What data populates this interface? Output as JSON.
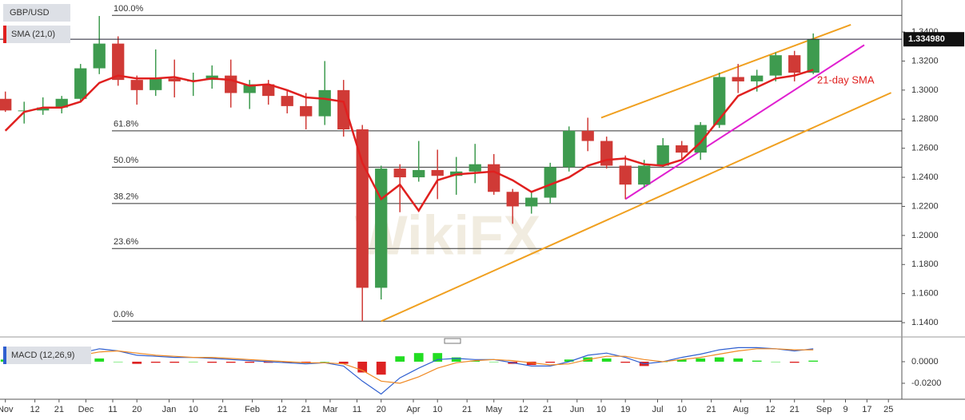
{
  "header": {
    "symbol": "GBP/USD",
    "indicator": "SMA (21,0)",
    "watermark": "WikiFX"
  },
  "chart_data": [
    {
      "type": "candlestick",
      "annotation": "21-day SMA",
      "colors": {
        "up": "#3e9b4f",
        "down": "#d03a36"
      },
      "xlim": [
        -2,
        334
      ],
      "ylim": [
        1.134,
        1.362
      ],
      "yticks": [
        {
          "value": 1.14,
          "label": "1.1400"
        },
        {
          "value": 1.16,
          "label": "1.1600"
        },
        {
          "value": 1.18,
          "label": "1.1800"
        },
        {
          "value": 1.2,
          "label": "1.2000"
        },
        {
          "value": 1.22,
          "label": "1.2200"
        },
        {
          "value": 1.24,
          "label": "1.2400"
        },
        {
          "value": 1.26,
          "label": "1.2600"
        },
        {
          "value": 1.28,
          "label": "1.2800"
        },
        {
          "value": 1.3,
          "label": "1.3000"
        },
        {
          "value": 1.32,
          "label": "1.3200"
        },
        {
          "value": 1.34,
          "label": "1.3400"
        }
      ],
      "last": {
        "value": 1.33498,
        "label": "1.334980"
      },
      "x": [
        0,
        7,
        14,
        21,
        28,
        35,
        42,
        49,
        56,
        63,
        70,
        77,
        84,
        91,
        98,
        105,
        112,
        119,
        126,
        133,
        140,
        147,
        154,
        161,
        168,
        175,
        182,
        189,
        196,
        203,
        210,
        217,
        224,
        231,
        238,
        245,
        252,
        259,
        266,
        273,
        280,
        287,
        294,
        301
      ],
      "open": [
        1.294,
        1.286,
        1.286,
        1.288,
        1.294,
        1.315,
        1.332,
        1.307,
        1.3,
        1.308,
        1.306,
        1.307,
        1.31,
        1.298,
        1.304,
        1.296,
        1.289,
        1.282,
        1.3,
        1.273,
        1.164,
        1.246,
        1.24,
        1.245,
        1.241,
        1.244,
        1.249,
        1.23,
        1.22,
        1.226,
        1.247,
        1.272,
        1.265,
        1.248,
        1.235,
        1.248,
        1.262,
        1.257,
        1.276,
        1.309,
        1.306,
        1.31,
        1.324,
        1.312
      ],
      "high": [
        1.299,
        1.292,
        1.295,
        1.296,
        1.318,
        1.351,
        1.337,
        1.31,
        1.328,
        1.321,
        1.312,
        1.317,
        1.321,
        1.307,
        1.307,
        1.3,
        1.298,
        1.32,
        1.307,
        1.276,
        1.248,
        1.249,
        1.265,
        1.259,
        1.254,
        1.263,
        1.256,
        1.232,
        1.23,
        1.25,
        1.275,
        1.281,
        1.268,
        1.255,
        1.252,
        1.267,
        1.265,
        1.278,
        1.312,
        1.318,
        1.314,
        1.326,
        1.327,
        1.339
      ],
      "low": [
        1.285,
        1.277,
        1.283,
        1.284,
        1.292,
        1.311,
        1.303,
        1.29,
        1.296,
        1.295,
        1.296,
        1.301,
        1.288,
        1.287,
        1.29,
        1.284,
        1.273,
        1.276,
        1.268,
        1.141,
        1.156,
        1.216,
        1.237,
        1.225,
        1.228,
        1.236,
        1.228,
        1.208,
        1.215,
        1.222,
        1.244,
        1.258,
        1.246,
        1.225,
        1.233,
        1.247,
        1.252,
        1.252,
        1.274,
        1.298,
        1.299,
        1.306,
        1.306,
        1.311
      ],
      "close": [
        1.286,
        1.286,
        1.288,
        1.294,
        1.315,
        1.332,
        1.307,
        1.3,
        1.308,
        1.306,
        1.307,
        1.31,
        1.298,
        1.304,
        1.296,
        1.289,
        1.282,
        1.3,
        1.273,
        1.164,
        1.246,
        1.24,
        1.245,
        1.241,
        1.244,
        1.249,
        1.23,
        1.22,
        1.226,
        1.247,
        1.272,
        1.265,
        1.248,
        1.235,
        1.248,
        1.262,
        1.257,
        1.276,
        1.309,
        1.306,
        1.31,
        1.324,
        1.312,
        1.335
      ],
      "series": [
        {
          "name": "SMA (21,0)",
          "color": "#e0201f",
          "values": [
            1.272,
            1.285,
            1.288,
            1.288,
            1.292,
            1.305,
            1.31,
            1.308,
            1.308,
            1.309,
            1.306,
            1.308,
            1.307,
            1.303,
            1.304,
            1.3,
            1.295,
            1.294,
            1.292,
            1.25,
            1.225,
            1.235,
            1.217,
            1.238,
            1.242,
            1.243,
            1.244,
            1.238,
            1.23,
            1.235,
            1.24,
            1.248,
            1.252,
            1.253,
            1.249,
            1.248,
            1.252,
            1.264,
            1.28,
            1.296,
            1.302,
            1.308,
            1.31,
            1.314
          ]
        }
      ],
      "fib_levels": [
        {
          "label": "100.0%",
          "value": 1.3514
        },
        {
          "label": "61.8%",
          "value": 1.272
        },
        {
          "label": "50.0%",
          "value": 1.247
        },
        {
          "label": "38.2%",
          "value": 1.222
        },
        {
          "label": "23.6%",
          "value": 1.191
        },
        {
          "label": "0.0%",
          "value": 1.141
        }
      ],
      "trendlines": [
        {
          "color": "#f0a020",
          "x": [
            222,
            315
          ],
          "y": [
            1.281,
            1.345
          ]
        },
        {
          "color": "#f0a020",
          "x": [
            140,
            330
          ],
          "y": [
            1.141,
            1.2982
          ]
        },
        {
          "color": "#e020d0",
          "x": [
            231,
            320
          ],
          "y": [
            1.225,
            1.331
          ]
        }
      ]
    },
    {
      "type": "macd",
      "title": "MACD (12,26,9)",
      "xlim": [
        -2,
        334
      ],
      "ylim": [
        -0.0348,
        0.0207
      ],
      "yticks": [
        {
          "value": 0,
          "label": "0.0000"
        },
        {
          "value": -0.02,
          "label": "-0.0200"
        }
      ],
      "xticks": [
        {
          "value": 0,
          "label": "Nov"
        },
        {
          "value": 11,
          "label": "12"
        },
        {
          "value": 20,
          "label": "21"
        },
        {
          "value": 30,
          "label": "Dec"
        },
        {
          "value": 40,
          "label": "11"
        },
        {
          "value": 49,
          "label": "20"
        },
        {
          "value": 61,
          "label": "Jan"
        },
        {
          "value": 70,
          "label": "10"
        },
        {
          "value": 81,
          "label": "21"
        },
        {
          "value": 92,
          "label": "Feb"
        },
        {
          "value": 103,
          "label": "12"
        },
        {
          "value": 112,
          "label": "21"
        },
        {
          "value": 121,
          "label": "Mar"
        },
        {
          "value": 131,
          "label": "11"
        },
        {
          "value": 140,
          "label": "20"
        },
        {
          "value": 152,
          "label": "Apr"
        },
        {
          "value": 161,
          "label": "10"
        },
        {
          "value": 172,
          "label": "21"
        },
        {
          "value": 182,
          "label": "May"
        },
        {
          "value": 193,
          "label": "12"
        },
        {
          "value": 202,
          "label": "21"
        },
        {
          "value": 213,
          "label": "Jun"
        },
        {
          "value": 222,
          "label": "10"
        },
        {
          "value": 231,
          "label": "19"
        },
        {
          "value": 243,
          "label": "Jul"
        },
        {
          "value": 252,
          "label": "10"
        },
        {
          "value": 263,
          "label": "21"
        },
        {
          "value": 274,
          "label": "Aug"
        },
        {
          "value": 285,
          "label": "12"
        },
        {
          "value": 294,
          "label": "21"
        },
        {
          "value": 305,
          "label": "Sep"
        },
        {
          "value": 313,
          "label": "9"
        },
        {
          "value": 321,
          "label": "17"
        },
        {
          "value": 329,
          "label": "25"
        }
      ],
      "x": [
        0,
        7,
        14,
        21,
        28,
        35,
        42,
        49,
        56,
        63,
        70,
        77,
        84,
        91,
        98,
        105,
        112,
        119,
        126,
        133,
        140,
        147,
        154,
        161,
        168,
        175,
        182,
        189,
        196,
        203,
        210,
        217,
        224,
        231,
        238,
        245,
        252,
        259,
        266,
        273,
        280,
        287,
        294,
        301
      ],
      "histogram": {
        "up_color": "#22dd22",
        "down_color": "#dd2222",
        "values": [
          0.002,
          0,
          0.001,
          0.001,
          0.002,
          0.003,
          0,
          -0.002,
          -0.001,
          -0.001,
          0,
          -0.001,
          -0.001,
          -0.001,
          -0.001,
          -0.001,
          -0.001,
          0,
          -0.002,
          -0.01,
          -0.012,
          0.005,
          0.008,
          0.008,
          0.004,
          0.001,
          0,
          -0.002,
          -0.003,
          -0.001,
          0.002,
          0.004,
          0.003,
          -0.001,
          -0.004,
          0,
          0.002,
          0.003,
          0.004,
          0.003,
          0.001,
          0,
          -0.001,
          0.001
        ]
      },
      "series": [
        {
          "name": "MACD",
          "color": "#2f5fd0",
          "values": [
            0.004,
            0.003,
            0.004,
            0.005,
            0.008,
            0.012,
            0.01,
            0.006,
            0.005,
            0.004,
            0.004,
            0.003,
            0.002,
            0.001,
            0,
            -0.001,
            -0.002,
            -0.001,
            -0.004,
            -0.018,
            -0.03,
            -0.015,
            -0.006,
            0.002,
            0.003,
            0.002,
            0.002,
            -0.001,
            -0.004,
            -0.004,
            0,
            0.006,
            0.008,
            0.004,
            -0.002,
            0,
            0.004,
            0.007,
            0.011,
            0.013,
            0.013,
            0.012,
            0.01,
            0.012
          ]
        },
        {
          "name": "Signal",
          "color": "#f08a24",
          "values": [
            0.002,
            0.003,
            0.003,
            0.004,
            0.006,
            0.009,
            0.01,
            0.008,
            0.006,
            0.005,
            0.004,
            0.004,
            0.003,
            0.002,
            0.001,
            0,
            -0.001,
            -0.001,
            -0.002,
            -0.008,
            -0.018,
            -0.02,
            -0.014,
            -0.006,
            -0.001,
            0.001,
            0.002,
            0.001,
            -0.001,
            -0.003,
            -0.002,
            0.002,
            0.005,
            0.005,
            0.002,
            0,
            0.002,
            0.004,
            0.007,
            0.01,
            0.012,
            0.012,
            0.011,
            0.011
          ]
        }
      ]
    }
  ]
}
